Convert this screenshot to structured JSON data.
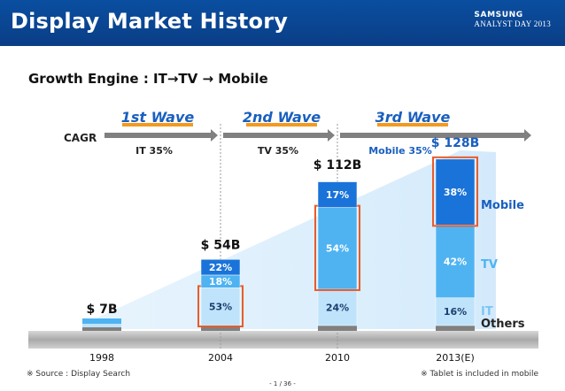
{
  "header": {
    "title": "Display Market History",
    "brand_line1": "SAMSUNG",
    "brand_line2": "ANALYST DAY 2013"
  },
  "subtitle": "Growth Engine : IT→TV → Mobile",
  "footer": {
    "source": "※ Source : Display Search",
    "note": "※ Tablet is included in mobile",
    "page": "- 1 / 36 -"
  },
  "colors": {
    "header_bg": "#0a4a98",
    "mobile": "#1a73d9",
    "tv": "#4fb3f2",
    "it": "#bfe3fb",
    "others": "#808080",
    "highlight": "#e85c2c",
    "wave_text": "#1a5fbf",
    "wave_underline": "#f29a1f"
  },
  "cagr": {
    "label": "CAGR",
    "waves": [
      {
        "name": "1st Wave",
        "rate": "IT 35%"
      },
      {
        "name": "2nd Wave",
        "rate": "TV 35%"
      },
      {
        "name": "3rd Wave",
        "rate": "Mobile 35%"
      }
    ]
  },
  "chart_data": {
    "type": "bar",
    "stacked": true,
    "categories": [
      "1998",
      "2004",
      "2010",
      "2013(E)"
    ],
    "totals": [
      7,
      54,
      112,
      128
    ],
    "total_labels": [
      "$ 7B",
      "$ 54B",
      "$ 112B",
      "$ 128B"
    ],
    "series": [
      {
        "name": "Others",
        "values": [
          null,
          null,
          null,
          null
        ]
      },
      {
        "name": "IT",
        "values": [
          null,
          53,
          24,
          16
        ]
      },
      {
        "name": "TV",
        "values": [
          null,
          18,
          54,
          42
        ]
      },
      {
        "name": "Mobile",
        "values": [
          null,
          22,
          17,
          38
        ]
      }
    ],
    "segment_labels": {
      "2004": [
        "53%",
        "18%",
        "22%"
      ],
      "2010": [
        "24%",
        "54%",
        "17%"
      ],
      "2013(E)": [
        "16%",
        "42%",
        "38%"
      ]
    },
    "legend": [
      "Mobile",
      "TV",
      "IT",
      "Others"
    ],
    "highlighted": [
      {
        "category": "2004",
        "series": "IT"
      },
      {
        "category": "2010",
        "series": "TV"
      },
      {
        "category": "2013(E)",
        "series": "Mobile"
      }
    ],
    "ylim": [
      0,
      140
    ],
    "grid": false
  }
}
